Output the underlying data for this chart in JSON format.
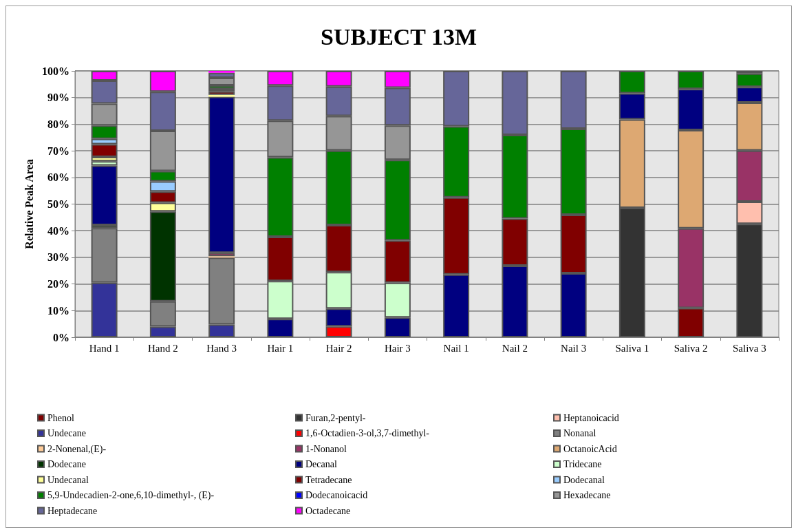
{
  "chart_data": {
    "type": "bar",
    "title": "SUBJECT 13M",
    "ylabel": "Relative Peak Area",
    "stacked": true,
    "grid": "y",
    "legend": "bottom",
    "categories": [
      "Hand 1",
      "Hand 2",
      "Hand 3",
      "Hair 1",
      "Hair 2",
      "Hair 3",
      "Nail 1",
      "Nail 2",
      "Nail 3",
      "Saliva 1",
      "Saliva 2",
      "Saliva 3"
    ],
    "ylim": [
      0,
      100
    ],
    "yticks": [
      {
        "value": 0,
        "label": "0%"
      },
      {
        "value": 10,
        "label": "10%"
      },
      {
        "value": 20,
        "label": "20%"
      },
      {
        "value": 30,
        "label": "30%"
      },
      {
        "value": 40,
        "label": "40%"
      },
      {
        "value": 50,
        "label": "50%"
      },
      {
        "value": 60,
        "label": "60%"
      },
      {
        "value": 70,
        "label": "70%"
      },
      {
        "value": 80,
        "label": "80%"
      },
      {
        "value": 90,
        "label": "90%"
      },
      {
        "value": 100,
        "label": "100%"
      }
    ],
    "series": [
      {
        "name": "Phenol",
        "color": "#800000",
        "values": [
          null,
          null,
          null,
          null,
          null,
          null,
          null,
          null,
          null,
          null,
          11.0,
          null
        ]
      },
      {
        "name": "Furan,2-pentyl-",
        "color": "#333333",
        "values": [
          null,
          null,
          null,
          null,
          null,
          null,
          null,
          null,
          null,
          48.6,
          null,
          42.6
        ]
      },
      {
        "name": "Heptanoicacid",
        "color": "#ffbfae",
        "values": [
          null,
          null,
          null,
          null,
          null,
          null,
          null,
          null,
          null,
          null,
          null,
          8.3
        ]
      },
      {
        "name": "Undecane",
        "color": "#333399",
        "values": [
          20.5,
          4.0,
          4.8,
          null,
          null,
          null,
          null,
          null,
          null,
          null,
          null,
          null
        ]
      },
      {
        "name": "1,6-Octadien-3-ol,3,7-dimethyl-",
        "color": "#ff0000",
        "values": [
          null,
          null,
          null,
          null,
          4.1,
          null,
          null,
          null,
          null,
          null,
          null,
          null
        ]
      },
      {
        "name": "Nonanal",
        "color": "#808080",
        "values": [
          20.5,
          9.5,
          25.1,
          null,
          null,
          null,
          null,
          null,
          null,
          null,
          null,
          null
        ]
      },
      {
        "name": "2-Nonenal,(E)-",
        "color": "#ffcc99",
        "values": [
          null,
          null,
          0.5,
          null,
          null,
          null,
          null,
          null,
          null,
          null,
          null,
          null
        ]
      },
      {
        "name": "1-Nonanol",
        "color": "#993366",
        "values": [
          null,
          null,
          1.3,
          null,
          null,
          null,
          null,
          null,
          null,
          null,
          29.9,
          19.2
        ]
      },
      {
        "name": "OctanoicAcid",
        "color": "#dda872",
        "values": [
          null,
          null,
          null,
          null,
          null,
          null,
          null,
          null,
          null,
          33.2,
          36.9,
          18.0
        ]
      },
      {
        "name": "Dodecane",
        "color": "#003300",
        "values": [
          1.1,
          33.7,
          null,
          null,
          null,
          null,
          null,
          null,
          null,
          null,
          null,
          null
        ]
      },
      {
        "name": "Decanal",
        "color": "#000080",
        "values": [
          22.4,
          null,
          58.6,
          6.9,
          6.7,
          7.4,
          23.6,
          26.9,
          24.0,
          9.8,
          15.4,
          5.9
        ]
      },
      {
        "name": "Tridecane",
        "color": "#ccffcc",
        "values": [
          1.6,
          null,
          null,
          14.2,
          13.7,
          13.1,
          null,
          null,
          null,
          null,
          null,
          null
        ]
      },
      {
        "name": "Undecanal",
        "color": "#ffff99",
        "values": [
          1.6,
          3.3,
          0.7,
          null,
          null,
          null,
          null,
          null,
          null,
          null,
          null,
          null
        ]
      },
      {
        "name": "Tetradecane",
        "color": "#800000",
        "values": [
          4.8,
          4.2,
          1.3,
          16.6,
          17.6,
          15.9,
          28.9,
          17.7,
          22.0,
          null,
          null,
          null
        ]
      },
      {
        "name": "Dodecanal",
        "color": "#99ccff",
        "values": [
          2.0,
          3.8,
          1.0,
          null,
          null,
          null,
          null,
          null,
          null,
          null,
          null,
          null
        ]
      },
      {
        "name": "5,9-Undecadien-2-one,6,10-dimethyl-, (E)-",
        "color": "#008000",
        "values": [
          5.0,
          3.9,
          1.3,
          29.9,
          28.0,
          30.2,
          26.7,
          31.4,
          32.3,
          8.4,
          6.8,
          5.0
        ]
      },
      {
        "name": "Dodecanoicacid",
        "color": "#0000ff",
        "values": [
          null,
          null,
          null,
          null,
          null,
          null,
          null,
          null,
          null,
          null,
          null,
          1.0
        ]
      },
      {
        "name": "Hexadecane",
        "color": "#969696",
        "values": [
          8.2,
          15.1,
          2.8,
          13.7,
          13.0,
          12.9,
          null,
          null,
          null,
          null,
          null,
          null
        ]
      },
      {
        "name": "Heptadecane",
        "color": "#666699",
        "values": [
          8.7,
          14.7,
          1.9,
          13.2,
          11.0,
          14.2,
          20.8,
          24.0,
          21.7,
          null,
          null,
          null
        ]
      },
      {
        "name": "Octadecane",
        "color": "#ff00ff",
        "values": [
          3.6,
          7.8,
          0.7,
          5.5,
          5.9,
          6.3,
          null,
          null,
          null,
          null,
          null,
          null
        ]
      }
    ]
  }
}
